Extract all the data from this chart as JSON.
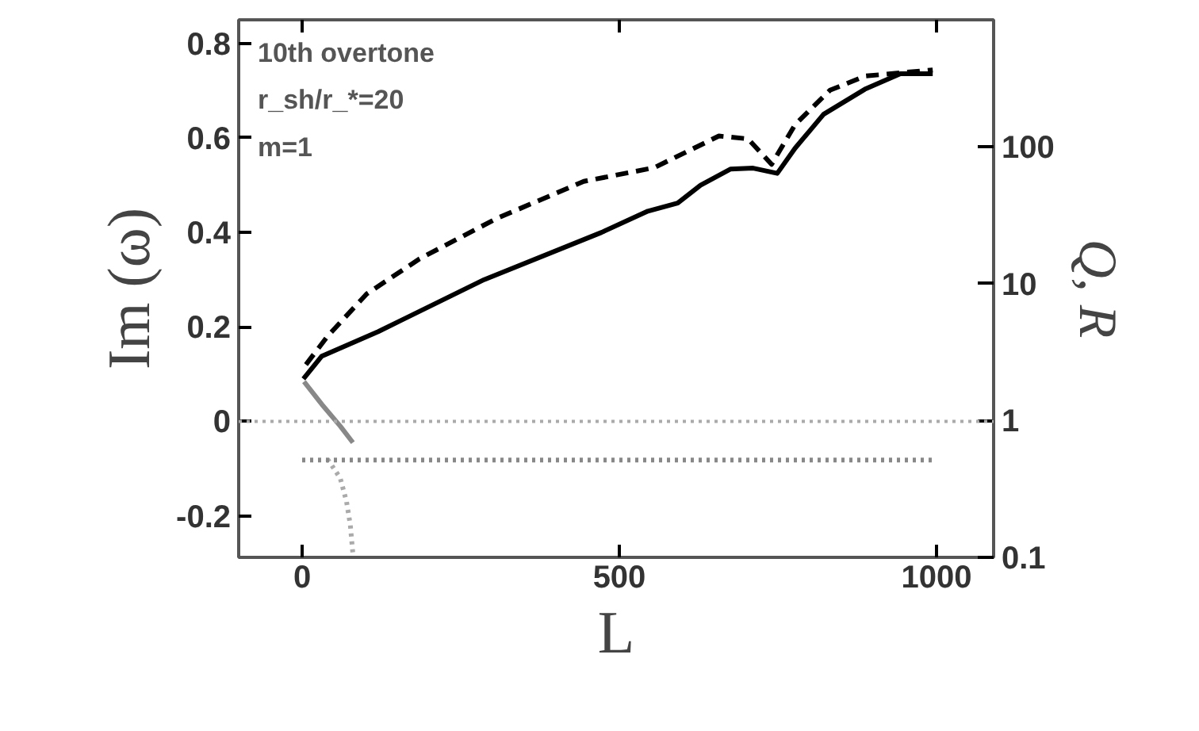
{
  "chart_data": {
    "type": "line",
    "xlabel": "L",
    "ylabel": "Im (ω)",
    "y2label": "Q, R",
    "annotations": [
      "10th overtone",
      "r_sh/r_*=20",
      "m=1"
    ],
    "xlim": [
      -100,
      1090
    ],
    "xticks": [
      0,
      500,
      1000
    ],
    "ylim": [
      -0.288,
      0.85
    ],
    "yticks": [
      -0.2,
      0,
      0.2,
      0.4,
      0.6,
      0.8
    ],
    "y2lim": [
      0.1,
      850
    ],
    "y2ticks": [
      0.1,
      1,
      10,
      100
    ],
    "log": "y2",
    "grid": false,
    "marker": "none",
    "ref_lines": [
      {
        "axis": "y",
        "value": 0,
        "color": "#aaaaaa",
        "line_style": "dotted"
      }
    ],
    "series": [
      {
        "color": "#000000",
        "line_style": "solid",
        "x": [
          2,
          31,
          120,
          287,
          472,
          545,
          592,
          628,
          675,
          711,
          749,
          777,
          822,
          887,
          943,
          994
        ],
        "values": [
          0.09,
          0.138,
          0.19,
          0.3,
          0.4,
          0.445,
          0.462,
          0.5,
          0.534,
          0.536,
          0.525,
          0.578,
          0.65,
          0.703,
          0.736,
          0.736
        ]
      },
      {
        "color": "#000000",
        "line_style": "dashed",
        "x": [
          6,
          40,
          102,
          185,
          306,
          444,
          555,
          657,
          703,
          740,
          777,
          832,
          888,
          994
        ],
        "values": [
          0.12,
          0.18,
          0.27,
          0.344,
          0.429,
          0.508,
          0.537,
          0.604,
          0.598,
          0.544,
          0.628,
          0.701,
          0.731,
          0.744
        ]
      },
      {
        "color": "#888888",
        "line_style": "solid",
        "x": [
          3,
          31,
          60,
          80
        ],
        "values": [
          0.084,
          0.036,
          -0.01,
          -0.045
        ]
      },
      {
        "color": "#aaaaaa",
        "line_style": "dotted",
        "x": [
          40,
          60,
          70,
          76,
          80
        ],
        "values": [
          -0.08,
          -0.12,
          -0.17,
          -0.22,
          -0.28
        ]
      },
      {
        "color": "#888888",
        "line_style": "dotted",
        "x": [
          0,
          1000
        ],
        "values": [
          -0.082,
          -0.082
        ]
      }
    ]
  }
}
